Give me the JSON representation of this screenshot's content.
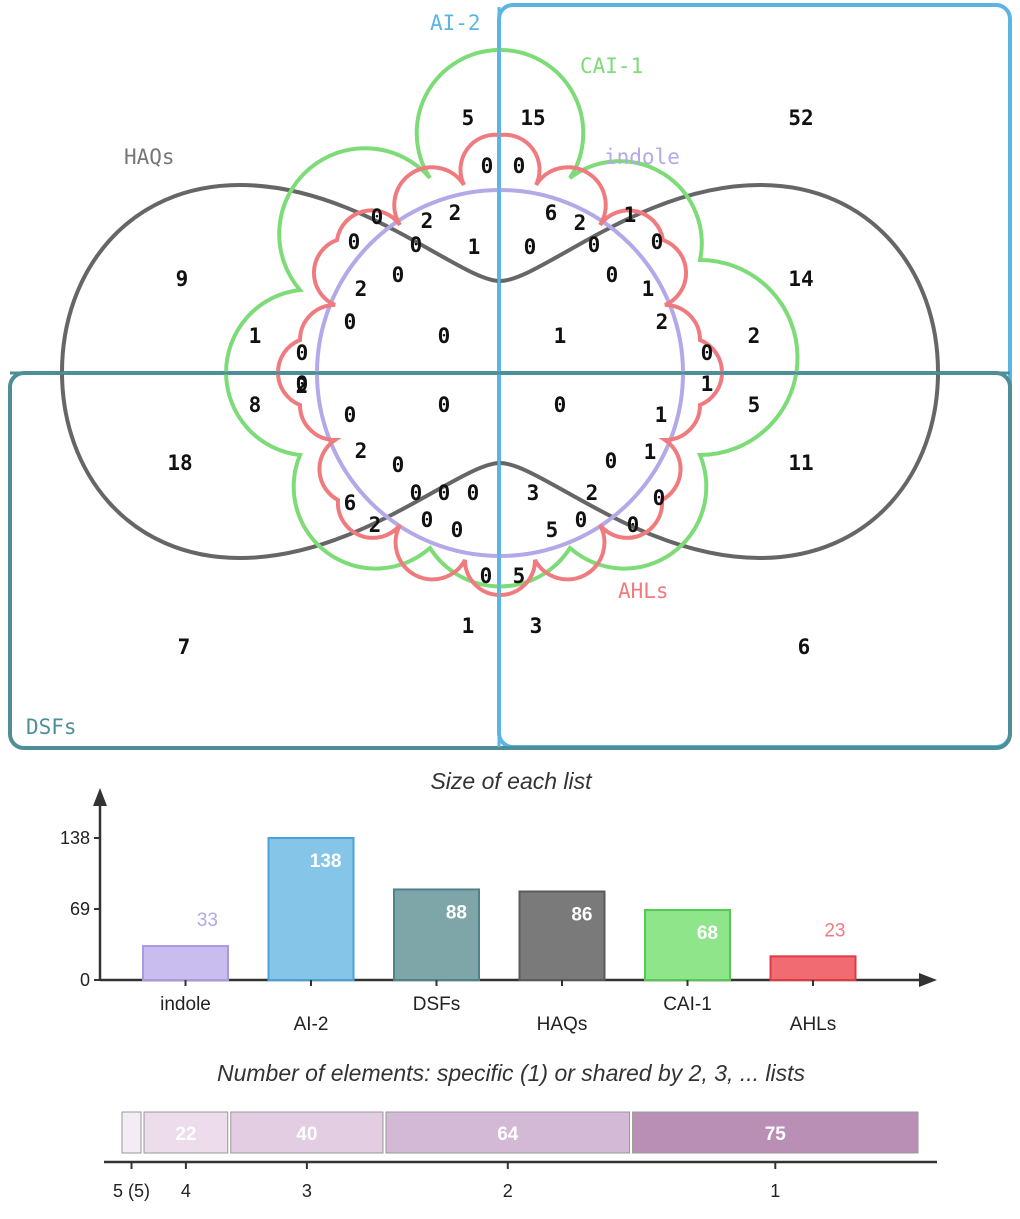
{
  "venn": {
    "sets": [
      {
        "id": "ai2",
        "label": "AI-2",
        "color": "#5bb5e2"
      },
      {
        "id": "cai1",
        "label": "CAI-1",
        "color": "#7ddb78"
      },
      {
        "id": "indole",
        "label": "indole",
        "color": "#b3a8e8"
      },
      {
        "id": "haqs",
        "label": "HAQs",
        "color": "#666666"
      },
      {
        "id": "ahls",
        "label": "AHLs",
        "color": "#f07b7f"
      },
      {
        "id": "dsfs",
        "label": "DSFs",
        "color": "#4e8f97"
      }
    ],
    "regions": [
      "5",
      "15",
      "52",
      "0",
      "0",
      "0",
      "0",
      "2",
      "2",
      "6",
      "2",
      "1",
      "0",
      "9",
      "0",
      "1",
      "0",
      "0",
      "0",
      "0",
      "14",
      "2",
      "0",
      "0",
      "1",
      "1",
      "2",
      "1",
      "0",
      "0",
      "1",
      "2",
      "0",
      "8",
      "2",
      "0",
      "0",
      "0",
      "5",
      "1",
      "18",
      "2",
      "0",
      "1",
      "0",
      "11",
      "6",
      "0",
      "0",
      "0",
      "3",
      "2",
      "0",
      "2",
      "0",
      "0",
      "5",
      "0",
      "0",
      "0",
      "5",
      "1",
      "3",
      "7",
      "6"
    ]
  },
  "chart_data": [
    {
      "type": "bar",
      "title": "Size of each list",
      "categories": [
        "indole",
        "AI-2",
        "DSFs",
        "HAQs",
        "CAI-1",
        "AHLs"
      ],
      "values": [
        33,
        138,
        88,
        86,
        68,
        23
      ],
      "colors": [
        "#c9bdf0",
        "#85c6e8",
        "#7ea6a9",
        "#7a7a7a",
        "#8fe58a",
        "#f06b72"
      ],
      "outline_colors": [
        "#a99ae0",
        "#4aa3d8",
        "#4e8488",
        "#5a5a5a",
        "#55c94f",
        "#e03b44"
      ],
      "label_colors": [
        "#b3a8e8",
        "#ffffff",
        "#ffffff",
        "#ffffff",
        "#ffffff",
        "#f07b7f"
      ],
      "yticks": [
        "0",
        "69",
        "138"
      ],
      "ylim": [
        0,
        138
      ]
    },
    {
      "type": "bar",
      "title": "Number of elements: specific (1) or shared by 2, 3, ... lists",
      "categories": [
        "5 (5)",
        "4",
        "3",
        "2",
        "1"
      ],
      "values": [
        5,
        22,
        40,
        64,
        75
      ],
      "shown_values": [
        "",
        "22",
        "40",
        "64",
        "75"
      ],
      "colors": [
        "#f4ecf4",
        "#ecdcec",
        "#e2cde2",
        "#d3b9d5",
        "#b98fb6"
      ]
    }
  ]
}
